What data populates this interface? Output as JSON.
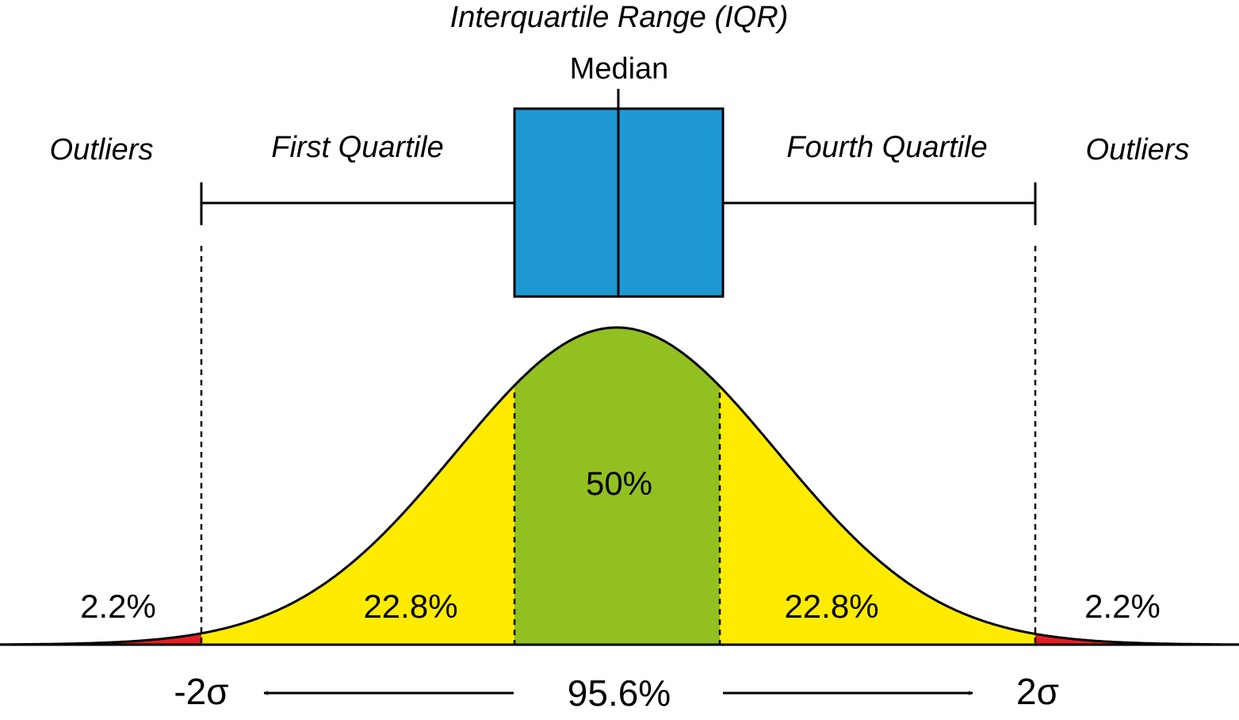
{
  "labels": {
    "iqr": "Interquartile Range (IQR)",
    "median": "Median",
    "outliers_left": "Outliers",
    "first_quartile": "First Quartile",
    "fourth_quartile": "Fourth Quartile",
    "outliers_right": "Outliers"
  },
  "percentages": {
    "left_tail": "2.2%",
    "left_mid": "22.8%",
    "center": "50%",
    "right_mid": "22.8%",
    "right_tail": "2.2%"
  },
  "axis": {
    "minus_two_sigma": "-2σ",
    "plus_two_sigma": "2σ",
    "span": "95.6%"
  },
  "colors": {
    "box": "#1e98d3",
    "center_region": "#92c020",
    "quartile_region": "#feeb00",
    "tail_region": "#e31e24",
    "line": "#000000"
  }
}
